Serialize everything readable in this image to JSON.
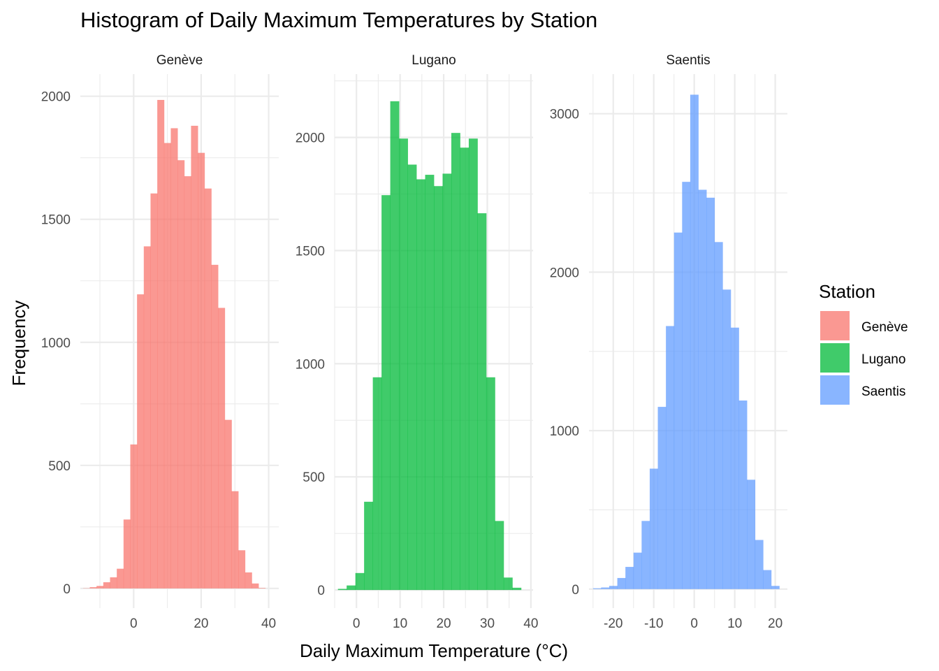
{
  "chart_data": {
    "type": "histogram",
    "title": "Histogram of Daily Maximum Temperatures by Station",
    "xlabel": "Daily Maximum Temperature (°C)",
    "ylabel": "Frequency",
    "legend": {
      "title": "Station",
      "position": "right"
    },
    "grid": true,
    "panels": [
      {
        "name": "Genève",
        "color": "#F8766D",
        "xlim": [
          -15.8,
          43.0
        ],
        "ylim": [
          -80,
          2090
        ],
        "xticks": [
          0,
          20,
          40
        ],
        "xtick_labels": [
          "0",
          "20",
          "40"
        ],
        "yticks": [
          0,
          500,
          1000,
          1500,
          2000
        ],
        "ytick_labels": [
          "0",
          "500",
          "1000",
          "1500",
          "2000"
        ],
        "bin_start": -15.0,
        "bin_width": 2.0,
        "counts": [
          1,
          5,
          10,
          25,
          45,
          80,
          280,
          585,
          1195,
          1390,
          1605,
          1985,
          1810,
          1870,
          1740,
          1675,
          1880,
          1770,
          1625,
          1315,
          1140,
          685,
          395,
          155,
          65,
          20,
          2
        ]
      },
      {
        "name": "Lugano",
        "color": "#00BA38",
        "xlim": [
          -5.0,
          40.5
        ],
        "ylim": [
          -80,
          2280
        ],
        "xticks": [
          0,
          10,
          20,
          30,
          40
        ],
        "xtick_labels": [
          "0",
          "10",
          "20",
          "30",
          "40"
        ],
        "yticks": [
          0,
          500,
          1000,
          1500,
          2000
        ],
        "ytick_labels": [
          "0",
          "500",
          "1000",
          "1500",
          "2000"
        ],
        "bin_start": -4.25,
        "bin_width": 2.0,
        "counts": [
          5,
          20,
          75,
          390,
          940,
          1745,
          2160,
          1995,
          1880,
          1815,
          1835,
          1785,
          1840,
          2020,
          1955,
          1995,
          1665,
          940,
          305,
          55,
          10
        ]
      },
      {
        "name": "Saentis",
        "color": "#619CFF",
        "xlim": [
          -26.0,
          23.0
        ],
        "ylim": [
          -120,
          3250
        ],
        "xticks": [
          -20,
          -10,
          0,
          10,
          20
        ],
        "xtick_labels": [
          "-20",
          "-10",
          "0",
          "10",
          "20"
        ],
        "yticks": [
          0,
          1000,
          2000,
          3000
        ],
        "ytick_labels": [
          "0",
          "1000",
          "2000",
          "3000"
        ],
        "bin_start": -25.0,
        "bin_width": 2.0,
        "counts": [
          5,
          10,
          20,
          70,
          140,
          230,
          430,
          760,
          1150,
          1660,
          2250,
          2570,
          3120,
          2520,
          2470,
          2190,
          1890,
          1650,
          1190,
          690,
          310,
          120,
          20
        ]
      }
    ]
  }
}
